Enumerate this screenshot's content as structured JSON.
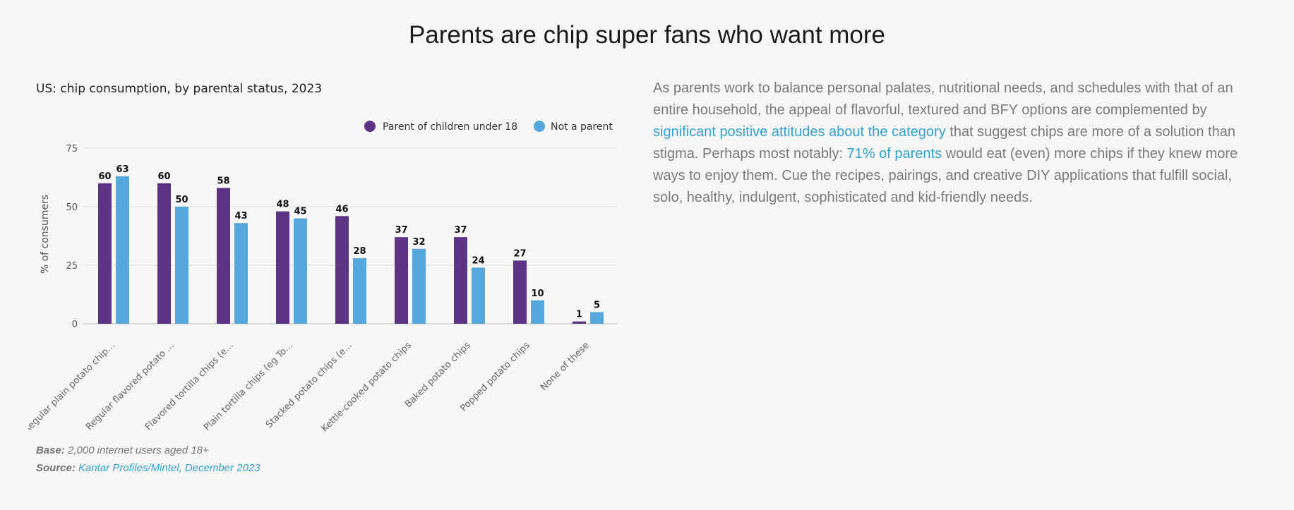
{
  "page": {
    "title": "Parents are chip super fans who want more"
  },
  "chart_data": {
    "type": "bar",
    "title": "US: chip consumption, by parental status, 2023",
    "ylabel": "% of consumers",
    "xlabel": "",
    "ylim": [
      0,
      75
    ],
    "yticks": [
      0,
      25,
      50,
      75
    ],
    "grid": true,
    "legend_position": "top-right",
    "categories": [
      "Regular plain potato chip...",
      "Regular flavored potato ...",
      "Flavored tortilla chips (e...",
      "Plain tortilla chips (eg To...",
      "Stacked potato chips (e...",
      "Kettle-cooked potato chips",
      "Baked potato chips",
      "Popped potato chips",
      "None of these"
    ],
    "series": [
      {
        "name": "Parent of children under 18",
        "color": "#5c3486",
        "values": [
          60,
          60,
          58,
          48,
          46,
          37,
          37,
          27,
          1
        ]
      },
      {
        "name": "Not a parent",
        "color": "#56a8dc",
        "values": [
          63,
          50,
          43,
          45,
          28,
          32,
          24,
          10,
          5
        ]
      }
    ]
  },
  "notes": {
    "base_label": "Base:",
    "base_text": "2,000 internet users aged 18+",
    "source_label": "Source:",
    "source_text": "Kantar Profiles/Mintel, December 2023"
  },
  "commentary": {
    "part1": "As parents work to balance personal palates, nutritional needs, and schedules with that of an entire household, the appeal of flavorful, textured and BFY options are complemented by ",
    "link1": "significant positive attitudes about the category",
    "part2": " that suggest chips are more of a solution than stigma. Perhaps most notably: ",
    "link2": "71% of parents",
    "part3": " would eat (even) more chips if they knew more ways to enjoy them. Cue the recipes, pairings, and creative DIY applications that fulfill social, solo, healthy, indulgent, sophisticated and kid-friendly needs."
  }
}
